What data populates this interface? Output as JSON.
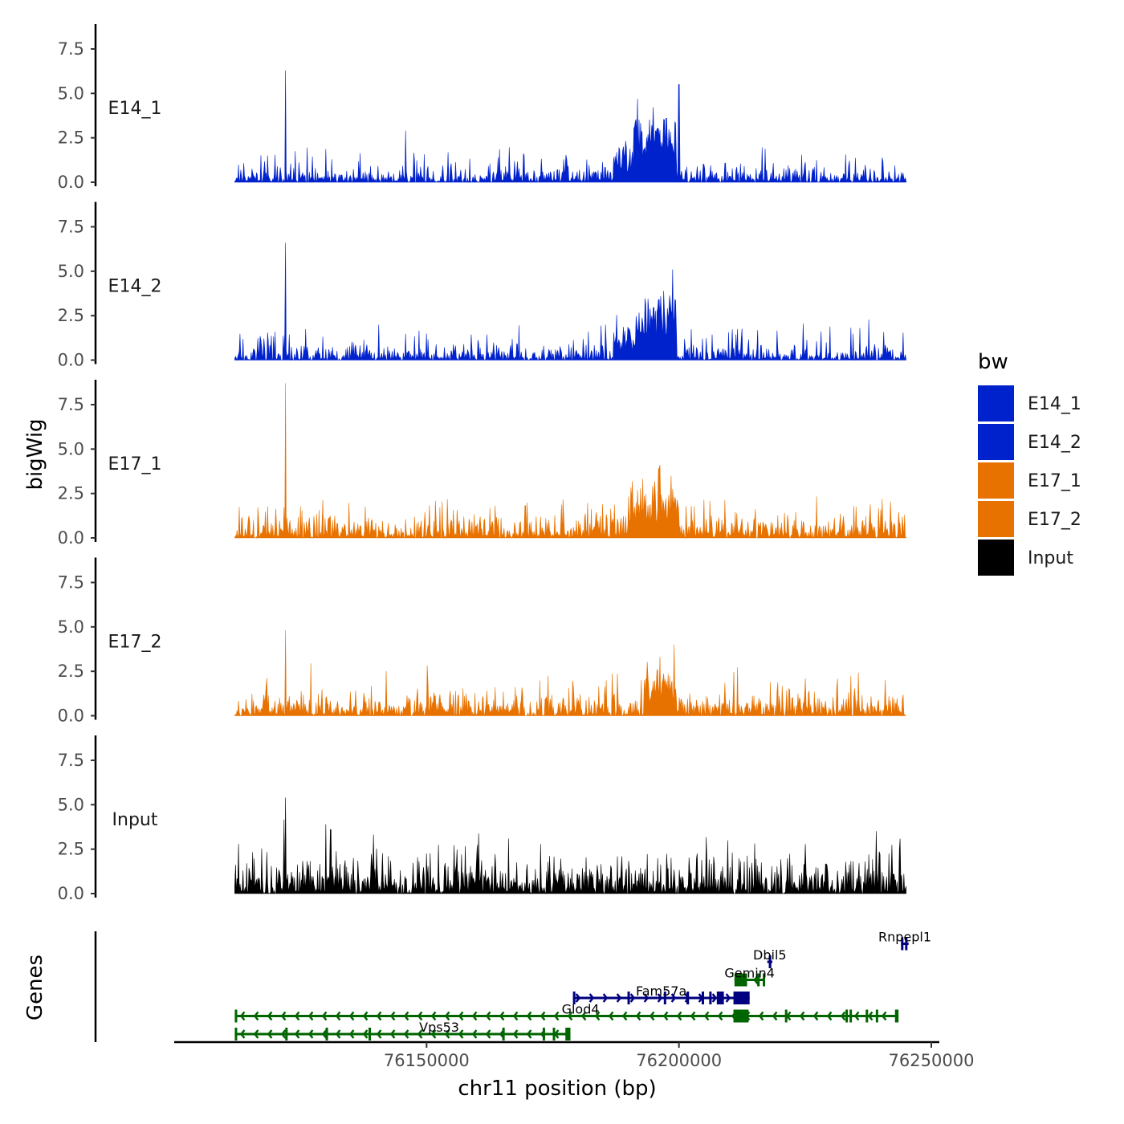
{
  "chart_data": {
    "type": "area",
    "title": "",
    "ylabel": "bigWig",
    "genes_ylabel": "Genes",
    "xlabel": "chr11 position (bp)",
    "xlim": [
      76112000,
      76245000
    ],
    "x_axis_range": [
      76100000,
      76250000
    ],
    "x_ticks": [
      {
        "value": 76150000,
        "label": "76150000"
      },
      {
        "value": 76200000,
        "label": "76200000"
      },
      {
        "value": 76250000,
        "label": "76250000"
      }
    ],
    "ylim": [
      0,
      8.9
    ],
    "y_ticks": [
      {
        "value": 0.0,
        "label": "0.0"
      },
      {
        "value": 2.5,
        "label": "2.5"
      },
      {
        "value": 5.0,
        "label": "5.0"
      },
      {
        "value": 7.5,
        "label": "7.5"
      }
    ],
    "legend": {
      "title": "bw",
      "position": "right",
      "entries": [
        {
          "label": "E14_1",
          "color": "#0022CC"
        },
        {
          "label": "E14_2",
          "color": "#0022CC"
        },
        {
          "label": "E17_1",
          "color": "#E87200"
        },
        {
          "label": "E17_2",
          "color": "#E87200"
        },
        {
          "label": "Input",
          "color": "#000000"
        }
      ]
    },
    "series": [
      {
        "name": "E14_1",
        "color": "#0022CC",
        "seed": 11,
        "base": 0.45,
        "var": 0.55,
        "peaks": [
          {
            "x": 76122000,
            "y": 6.3
          },
          {
            "x": 76200000,
            "y": 5.5
          },
          {
            "x": 76197500,
            "y": 3.6
          },
          {
            "x": 76195500,
            "y": 2.8
          }
        ],
        "regions": [
          {
            "start": 76191000,
            "end": 76199500,
            "level": 2.6
          },
          {
            "start": 76187000,
            "end": 76191000,
            "level": 1.2
          }
        ]
      },
      {
        "name": "E14_2",
        "color": "#0022CC",
        "seed": 23,
        "base": 0.45,
        "var": 0.6,
        "peaks": [
          {
            "x": 76122000,
            "y": 6.6
          },
          {
            "x": 76198800,
            "y": 5.1
          },
          {
            "x": 76197000,
            "y": 3.9
          },
          {
            "x": 76196000,
            "y": 3.4
          }
        ],
        "regions": [
          {
            "start": 76191500,
            "end": 76199500,
            "level": 2.4
          },
          {
            "start": 76187000,
            "end": 76191500,
            "level": 1.0
          }
        ]
      },
      {
        "name": "E17_1",
        "color": "#E87200",
        "seed": 37,
        "base": 0.7,
        "var": 0.8,
        "peaks": [
          {
            "x": 76122000,
            "y": 8.7
          },
          {
            "x": 76196000,
            "y": 3.9
          },
          {
            "x": 76198500,
            "y": 3.5
          }
        ],
        "regions": [
          {
            "start": 76190000,
            "end": 76200000,
            "level": 1.8
          }
        ]
      },
      {
        "name": "E17_2",
        "color": "#E87200",
        "seed": 53,
        "base": 0.75,
        "var": 0.8,
        "peaks": [
          {
            "x": 76122000,
            "y": 4.8
          },
          {
            "x": 76199000,
            "y": 4.0
          }
        ],
        "regions": [
          {
            "start": 76193000,
            "end": 76199500,
            "level": 1.6
          }
        ]
      },
      {
        "name": "Input",
        "color": "#000000",
        "seed": 71,
        "base": 1.1,
        "var": 0.9,
        "peaks": [
          {
            "x": 76122000,
            "y": 5.4
          },
          {
            "x": 76130000,
            "y": 3.9
          },
          {
            "x": 76131000,
            "y": 3.6
          }
        ],
        "regions": []
      }
    ],
    "genes": [
      {
        "name": "Rnpepl1",
        "strand": "+",
        "color": "#000080",
        "start": 76244000,
        "end": 76245500,
        "row": 5,
        "exons": [
          [
            76244000,
            76244400
          ],
          [
            76244800,
            76245200
          ]
        ]
      },
      {
        "name": "Dbil5",
        "strand": "+",
        "color": "#000080",
        "start": 76217500,
        "end": 76218500,
        "row": 4,
        "exons": [
          [
            76217800,
            76218300
          ]
        ]
      },
      {
        "name": "Gemin4",
        "strand": "-",
        "color": "#006400",
        "start": 76211000,
        "end": 76217000,
        "row": 3,
        "exons": [
          [
            76211000,
            76213500
          ],
          [
            76215500,
            76216000
          ],
          [
            76216600,
            76216900
          ]
        ]
      },
      {
        "name": "Fam57a",
        "strand": "+",
        "color": "#000080",
        "start": 76179000,
        "end": 76214000,
        "row": 2,
        "exons": [
          [
            76179000,
            76179400
          ],
          [
            76189800,
            76190100
          ],
          [
            76197000,
            76197300
          ],
          [
            76201500,
            76202000
          ],
          [
            76204500,
            76204800
          ],
          [
            76206000,
            76206300
          ],
          [
            76207500,
            76208900
          ],
          [
            76210800,
            76214000
          ]
        ]
      },
      {
        "name": "Glod4",
        "strand": "-",
        "color": "#006400",
        "start": 76112000,
        "end": 76243500,
        "row": 1,
        "exons": [
          [
            76112000,
            76112400
          ],
          [
            76210800,
            76213800
          ],
          [
            76221000,
            76221400
          ],
          [
            76233000,
            76233300
          ],
          [
            76233800,
            76234200
          ],
          [
            76237000,
            76237300
          ],
          [
            76239000,
            76239300
          ],
          [
            76242800,
            76243500
          ]
        ]
      },
      {
        "name": "Vps53",
        "strand": "-",
        "color": "#006400",
        "start": 76112000,
        "end": 76178500,
        "row": 0,
        "exons": [
          [
            76112000,
            76112400
          ],
          [
            76122000,
            76122300
          ],
          [
            76130000,
            76130300
          ],
          [
            76138500,
            76138800
          ],
          [
            76165000,
            76165300
          ],
          [
            76173000,
            76173300
          ],
          [
            76175000,
            76175400
          ],
          [
            76177500,
            76178500
          ]
        ]
      }
    ]
  }
}
